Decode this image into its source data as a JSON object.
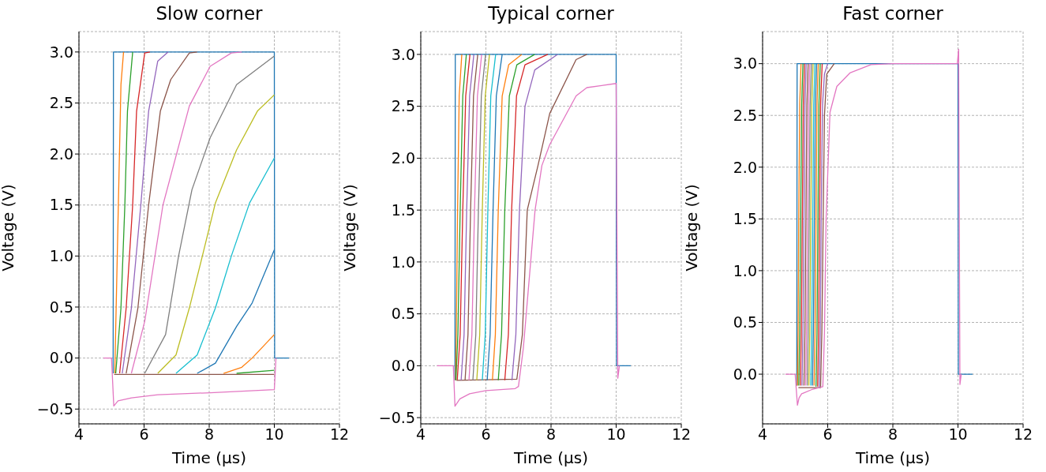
{
  "chart_data": [
    {
      "type": "line",
      "title": "Slow corner",
      "xlabel": "Time (µs)",
      "ylabel": "Voltage (V)",
      "xlim": [
        4,
        12
      ],
      "xticks": [
        4,
        6,
        8,
        10,
        12
      ],
      "ylim": [
        -0.645,
        3.2
      ],
      "yticks": [
        {
          "value": -0.5,
          "label": "−0.5"
        },
        {
          "value": 0,
          "label": "0.0"
        },
        {
          "value": 0.5,
          "label": "0.5"
        },
        {
          "value": 1,
          "label": "1.0"
        },
        {
          "value": 1.5,
          "label": "1.5"
        },
        {
          "value": 2,
          "label": "2.0"
        },
        {
          "value": 2.5,
          "label": "2.5"
        },
        {
          "value": 3,
          "label": "3.0"
        }
      ],
      "grid": true,
      "series": [
        {
          "color": "#1f77b4",
          "x": [
            5.05,
            5.06,
            10.0,
            10.01,
            10.45
          ],
          "values": [
            -0.15,
            3.0,
            3.0,
            0,
            0
          ]
        },
        {
          "color": "#8c564b",
          "x": [
            5.08,
            10.0
          ],
          "values": [
            -0.16,
            -0.16
          ]
        },
        {
          "color": "#ff7f0e",
          "x": [
            5.1,
            5.21,
            5.29,
            5.37
          ],
          "values": [
            -0.15,
            1.5,
            2.68,
            3.0
          ]
        },
        {
          "color": "#2ca02c",
          "x": [
            5.13,
            5.29,
            5.41,
            5.49,
            5.65
          ],
          "values": [
            -0.15,
            0.49,
            1.5,
            2.42,
            3.0
          ]
        },
        {
          "color": "#d62728",
          "x": [
            5.25,
            5.45,
            5.65,
            5.77,
            6.02,
            6.18
          ],
          "values": [
            -0.15,
            0.49,
            1.5,
            2.42,
            2.99,
            3.0
          ]
        },
        {
          "color": "#9467bd",
          "x": [
            5.33,
            5.61,
            5.9,
            6.14,
            6.42,
            6.74
          ],
          "values": [
            -0.15,
            0.49,
            1.5,
            2.42,
            2.91,
            3.0
          ]
        },
        {
          "color": "#8c564b",
          "x": [
            5.45,
            5.81,
            6.14,
            6.5,
            6.82,
            7.39,
            7.63
          ],
          "values": [
            -0.15,
            0.49,
            1.5,
            2.42,
            2.73,
            2.99,
            3.0
          ]
        },
        {
          "color": "#e377c2",
          "x": [
            5.61,
            6.02,
            6.58,
            7.39,
            8.03,
            8.68,
            9.0
          ],
          "values": [
            -0.15,
            0.36,
            1.5,
            2.47,
            2.86,
            2.99,
            3.0
          ]
        },
        {
          "color": "#7f7f7f",
          "x": [
            6.02,
            6.66,
            7.06,
            7.47,
            8.03,
            8.84,
            10.0
          ],
          "values": [
            -0.15,
            0.23,
            1.0,
            1.65,
            2.16,
            2.68,
            2.96
          ]
        },
        {
          "color": "#bcbd22",
          "x": [
            6.42,
            6.98,
            7.39,
            7.79,
            8.19,
            8.84,
            9.48,
            10.0
          ],
          "values": [
            -0.15,
            0.03,
            0.49,
            1.0,
            1.52,
            2.04,
            2.42,
            2.58
          ]
        },
        {
          "color": "#17becf",
          "x": [
            6.98,
            7.63,
            8.19,
            8.68,
            9.24,
            10.0
          ],
          "values": [
            -0.15,
            0.03,
            0.49,
            1.0,
            1.52,
            1.96
          ]
        },
        {
          "color": "#1f77b4",
          "x": [
            7.63,
            8.19,
            8.84,
            9.32,
            10.0
          ],
          "values": [
            -0.15,
            -0.05,
            0.31,
            0.54,
            1.06
          ]
        },
        {
          "color": "#ff7f0e",
          "x": [
            8.44,
            9.0,
            9.32,
            10.0
          ],
          "values": [
            -0.15,
            -0.09,
            0.0,
            0.23
          ]
        },
        {
          "color": "#2ca02c",
          "x": [
            8.84,
            10.0
          ],
          "values": [
            -0.15,
            -0.12
          ]
        },
        {
          "color": "#e377c2",
          "x": [
            4.75,
            5.0,
            5.07,
            5.2,
            5.61,
            6.42,
            8.03,
            10.0,
            10.05
          ],
          "values": [
            0,
            0,
            -0.47,
            -0.42,
            -0.39,
            -0.36,
            -0.34,
            -0.31,
            0
          ]
        }
      ]
    },
    {
      "type": "line",
      "title": "Typical corner",
      "xlabel": "Time (µs)",
      "ylabel": "Voltage (V)",
      "xlim": [
        4,
        12
      ],
      "xticks": [
        4,
        6,
        8,
        10,
        12
      ],
      "ylim": [
        -0.56,
        3.22
      ],
      "yticks": [
        {
          "value": -0.5,
          "label": "−0.5"
        },
        {
          "value": 0,
          "label": "0.0"
        },
        {
          "value": 0.5,
          "label": "0.5"
        },
        {
          "value": 1,
          "label": "1.0"
        },
        {
          "value": 1.5,
          "label": "1.5"
        },
        {
          "value": 2,
          "label": "2.0"
        },
        {
          "value": 2.5,
          "label": "2.5"
        },
        {
          "value": 3,
          "label": "3.0"
        }
      ],
      "grid": true,
      "series": [
        {
          "color": "#1f77b4",
          "x": [
            5.05,
            5.06,
            10.0,
            10.01,
            10.45
          ],
          "values": [
            -0.14,
            3.0,
            3.0,
            0,
            0
          ]
        },
        {
          "color": "#8c564b",
          "x": [
            5.1,
            6.95,
            7.12,
            7.27,
            7.6,
            7.96,
            8.77,
            9.1
          ],
          "values": [
            -0.14,
            -0.13,
            0.3,
            1.5,
            1.93,
            2.43,
            2.95,
            3.0
          ]
        },
        {
          "color": "#ff7f0e",
          "x": [
            5.07,
            5.09,
            5.13,
            5.18,
            5.26
          ],
          "values": [
            -0.14,
            0.3,
            1.5,
            2.6,
            3.0
          ]
        },
        {
          "color": "#2ca02c",
          "x": [
            5.08,
            5.14,
            5.21,
            5.29,
            5.4
          ],
          "values": [
            -0.14,
            0.3,
            1.5,
            2.6,
            3.0
          ]
        },
        {
          "color": "#d62728",
          "x": [
            5.12,
            5.21,
            5.29,
            5.38,
            5.51
          ],
          "values": [
            -0.14,
            0.3,
            1.5,
            2.6,
            3.0
          ]
        },
        {
          "color": "#9467bd",
          "x": [
            5.24,
            5.33,
            5.41,
            5.5,
            5.63
          ],
          "values": [
            -0.14,
            0.3,
            1.5,
            2.6,
            3.0
          ]
        },
        {
          "color": "#8c564b",
          "x": [
            5.36,
            5.45,
            5.53,
            5.62,
            5.75
          ],
          "values": [
            -0.14,
            0.3,
            1.5,
            2.6,
            3.0
          ]
        },
        {
          "color": "#e377c2",
          "x": [
            5.48,
            5.57,
            5.65,
            5.74,
            5.87
          ],
          "values": [
            -0.14,
            0.3,
            1.5,
            2.6,
            3.0
          ]
        },
        {
          "color": "#7f7f7f",
          "x": [
            5.6,
            5.69,
            5.77,
            5.86,
            5.99
          ],
          "values": [
            -0.14,
            0.3,
            1.5,
            2.6,
            3.0
          ]
        },
        {
          "color": "#bcbd22",
          "x": [
            5.72,
            5.81,
            5.89,
            5.98,
            6.11
          ],
          "values": [
            -0.14,
            0.3,
            1.5,
            2.6,
            3.0
          ]
        },
        {
          "color": "#17becf",
          "x": [
            5.89,
            5.98,
            6.06,
            6.15,
            6.3
          ],
          "values": [
            -0.14,
            0.3,
            1.5,
            2.6,
            3.0
          ]
        },
        {
          "color": "#1f77b4",
          "x": [
            6.04,
            6.13,
            6.22,
            6.32,
            6.5
          ],
          "values": [
            -0.14,
            0.3,
            1.5,
            2.6,
            3.0
          ]
        },
        {
          "color": "#ff7f0e",
          "x": [
            6.2,
            6.29,
            6.38,
            6.5,
            6.7,
            7.1
          ],
          "values": [
            -0.14,
            0.3,
            1.5,
            2.6,
            2.9,
            3.0
          ]
        },
        {
          "color": "#2ca02c",
          "x": [
            6.38,
            6.48,
            6.58,
            6.72,
            6.95,
            7.5
          ],
          "values": [
            -0.14,
            0.3,
            1.5,
            2.6,
            2.9,
            3.0
          ]
        },
        {
          "color": "#d62728",
          "x": [
            6.58,
            6.69,
            6.79,
            6.94,
            7.2,
            7.9
          ],
          "values": [
            -0.14,
            0.3,
            1.5,
            2.6,
            2.9,
            3.0
          ]
        },
        {
          "color": "#9467bd",
          "x": [
            6.8,
            6.92,
            7.03,
            7.2,
            7.5,
            8.2
          ],
          "values": [
            -0.14,
            0.3,
            1.5,
            2.5,
            2.85,
            3.0
          ]
        },
        {
          "color": "#e377c2",
          "x": [
            4.5,
            5.0,
            5.05,
            5.2,
            5.5,
            6.0,
            6.9,
            7.0,
            7.15,
            7.51,
            7.72,
            7.96,
            8.77,
            9.1,
            10.0,
            10.05,
            10.1
          ],
          "values": [
            0,
            0,
            -0.39,
            -0.32,
            -0.27,
            -0.24,
            -0.22,
            -0.2,
            0.17,
            1.5,
            1.93,
            2.13,
            2.6,
            2.68,
            2.72,
            -0.12,
            0
          ]
        }
      ]
    },
    {
      "type": "line",
      "title": "Fast corner",
      "xlabel": "Time (µs)",
      "ylabel": "Voltage (V)",
      "xlim": [
        4,
        12
      ],
      "xticks": [
        4,
        6,
        8,
        10,
        12
      ],
      "ylim": [
        -0.48,
        3.31
      ],
      "yticks": [
        {
          "value": 0,
          "label": "0.0"
        },
        {
          "value": 0.5,
          "label": "0.5"
        },
        {
          "value": 1,
          "label": "1.0"
        },
        {
          "value": 1.5,
          "label": "1.5"
        },
        {
          "value": 2,
          "label": "2.0"
        },
        {
          "value": 2.5,
          "label": "2.5"
        },
        {
          "value": 3,
          "label": "3.0"
        }
      ],
      "grid": true,
      "series": [
        {
          "color": "#1f77b4",
          "x": [
            5.05,
            5.06,
            10.0,
            10.01,
            10.45
          ],
          "values": [
            -0.11,
            3.0,
            3.0,
            0,
            0
          ]
        },
        {
          "color": "#8c564b",
          "x": [
            5.1,
            5.78,
            5.82,
            5.86,
            5.9,
            5.97,
            6.2
          ],
          "values": [
            -0.13,
            -0.13,
            0.4,
            1.5,
            2.5,
            2.9,
            3.0
          ]
        },
        {
          "color": "#ff7f0e",
          "x": [
            5.07,
            5.09,
            5.11,
            5.14,
            5.18
          ],
          "values": [
            -0.11,
            0.4,
            1.5,
            2.6,
            3.0
          ]
        },
        {
          "color": "#2ca02c",
          "x": [
            5.11,
            5.14,
            5.17,
            5.2,
            5.24
          ],
          "values": [
            -0.11,
            0.4,
            1.5,
            2.6,
            3.0
          ]
        },
        {
          "color": "#d62728",
          "x": [
            5.16,
            5.19,
            5.22,
            5.25,
            5.29
          ],
          "values": [
            -0.11,
            0.4,
            1.5,
            2.6,
            3.0
          ]
        },
        {
          "color": "#9467bd",
          "x": [
            5.21,
            5.24,
            5.27,
            5.3,
            5.34
          ],
          "values": [
            -0.11,
            0.4,
            1.5,
            2.6,
            3.0
          ]
        },
        {
          "color": "#8c564b",
          "x": [
            5.27,
            5.3,
            5.33,
            5.36,
            5.4
          ],
          "values": [
            -0.11,
            0.4,
            1.5,
            2.6,
            3.0
          ]
        },
        {
          "color": "#e377c2",
          "x": [
            5.32,
            5.35,
            5.38,
            5.41,
            5.45
          ],
          "values": [
            -0.11,
            0.4,
            1.5,
            2.6,
            3.0
          ]
        },
        {
          "color": "#7f7f7f",
          "x": [
            5.37,
            5.4,
            5.43,
            5.46,
            5.5
          ],
          "values": [
            -0.11,
            0.4,
            1.5,
            2.6,
            3.0
          ]
        },
        {
          "color": "#bcbd22",
          "x": [
            5.42,
            5.45,
            5.48,
            5.51,
            5.55
          ],
          "values": [
            -0.11,
            0.4,
            1.5,
            2.6,
            3.0
          ]
        },
        {
          "color": "#17becf",
          "x": [
            5.48,
            5.51,
            5.54,
            5.57,
            5.61
          ],
          "values": [
            -0.11,
            0.4,
            1.5,
            2.6,
            3.0
          ]
        },
        {
          "color": "#1f77b4",
          "x": [
            5.53,
            5.56,
            5.59,
            5.62,
            5.66
          ],
          "values": [
            -0.11,
            0.4,
            1.5,
            2.6,
            3.0
          ]
        },
        {
          "color": "#ff7f0e",
          "x": [
            5.58,
            5.61,
            5.64,
            5.67,
            5.71
          ],
          "values": [
            -0.11,
            0.4,
            1.5,
            2.6,
            3.0
          ]
        },
        {
          "color": "#2ca02c",
          "x": [
            5.64,
            5.67,
            5.7,
            5.73,
            5.77
          ],
          "values": [
            -0.12,
            0.4,
            1.5,
            2.6,
            3.0
          ]
        },
        {
          "color": "#d62728",
          "x": [
            5.69,
            5.72,
            5.75,
            5.78,
            5.83
          ],
          "values": [
            -0.12,
            0.4,
            1.5,
            2.6,
            3.0
          ]
        },
        {
          "color": "#9467bd",
          "x": [
            5.74,
            5.77,
            5.8,
            5.84,
            5.9,
            6.0
          ],
          "values": [
            -0.13,
            0.4,
            1.5,
            2.6,
            2.9,
            3.0
          ]
        },
        {
          "color": "#e377c2",
          "x": [
            4.7,
            5.0,
            5.07,
            5.12,
            5.2,
            5.5,
            5.85,
            5.9,
            5.95,
            6.07,
            6.28,
            6.68,
            7.33,
            8.0,
            9.98,
            10.02,
            10.06,
            10.1
          ],
          "values": [
            0,
            0,
            -0.3,
            -0.23,
            -0.19,
            -0.15,
            -0.12,
            0.4,
            1.5,
            2.53,
            2.78,
            2.91,
            2.99,
            3.0,
            3.0,
            3.14,
            -0.1,
            0
          ]
        }
      ]
    }
  ]
}
